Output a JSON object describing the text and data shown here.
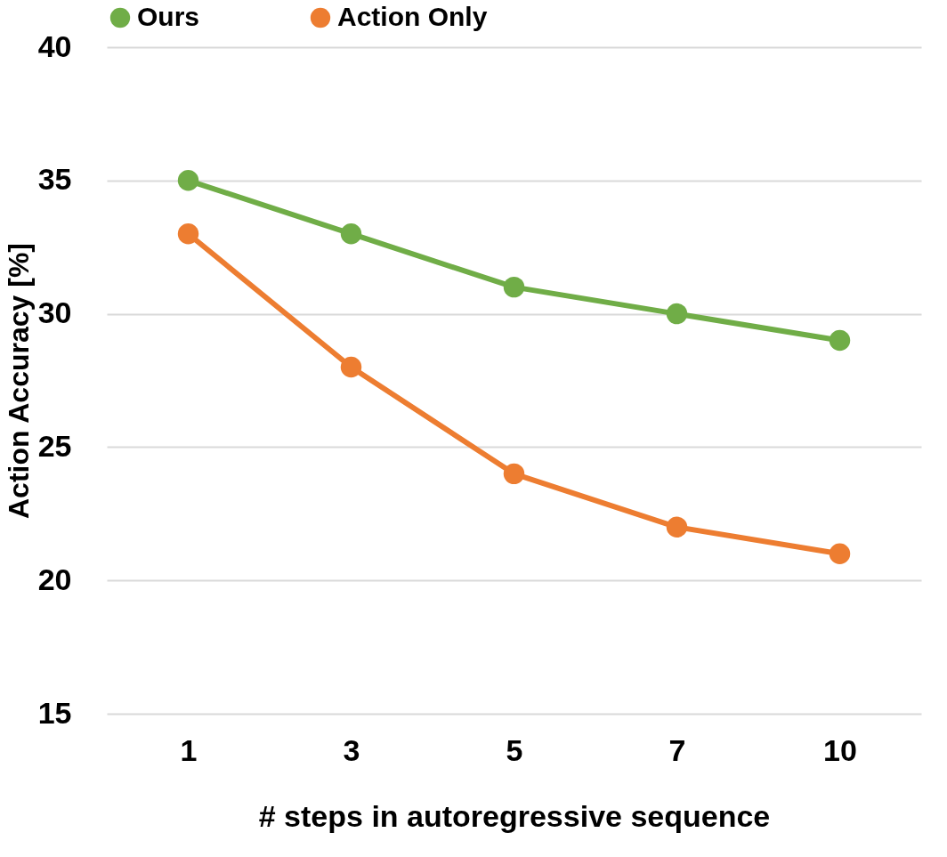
{
  "chart_data": {
    "type": "line",
    "xlabel": "# steps in autoregressive sequence",
    "ylabel": "Action Accuracy [%]",
    "categories": [
      "1",
      "3",
      "5",
      "7",
      "10"
    ],
    "series": [
      {
        "name": "Ours",
        "color": "#70ad47",
        "values": [
          35,
          33,
          31,
          30,
          29
        ]
      },
      {
        "name": "Action Only",
        "color": "#ed7d31",
        "values": [
          33,
          28,
          24,
          22,
          21
        ]
      }
    ],
    "ylim": [
      15,
      40
    ],
    "yticks": [
      15,
      20,
      25,
      30,
      35,
      40
    ],
    "grid": "y",
    "legend": "top",
    "marker": "circle",
    "line_style": "solid"
  }
}
